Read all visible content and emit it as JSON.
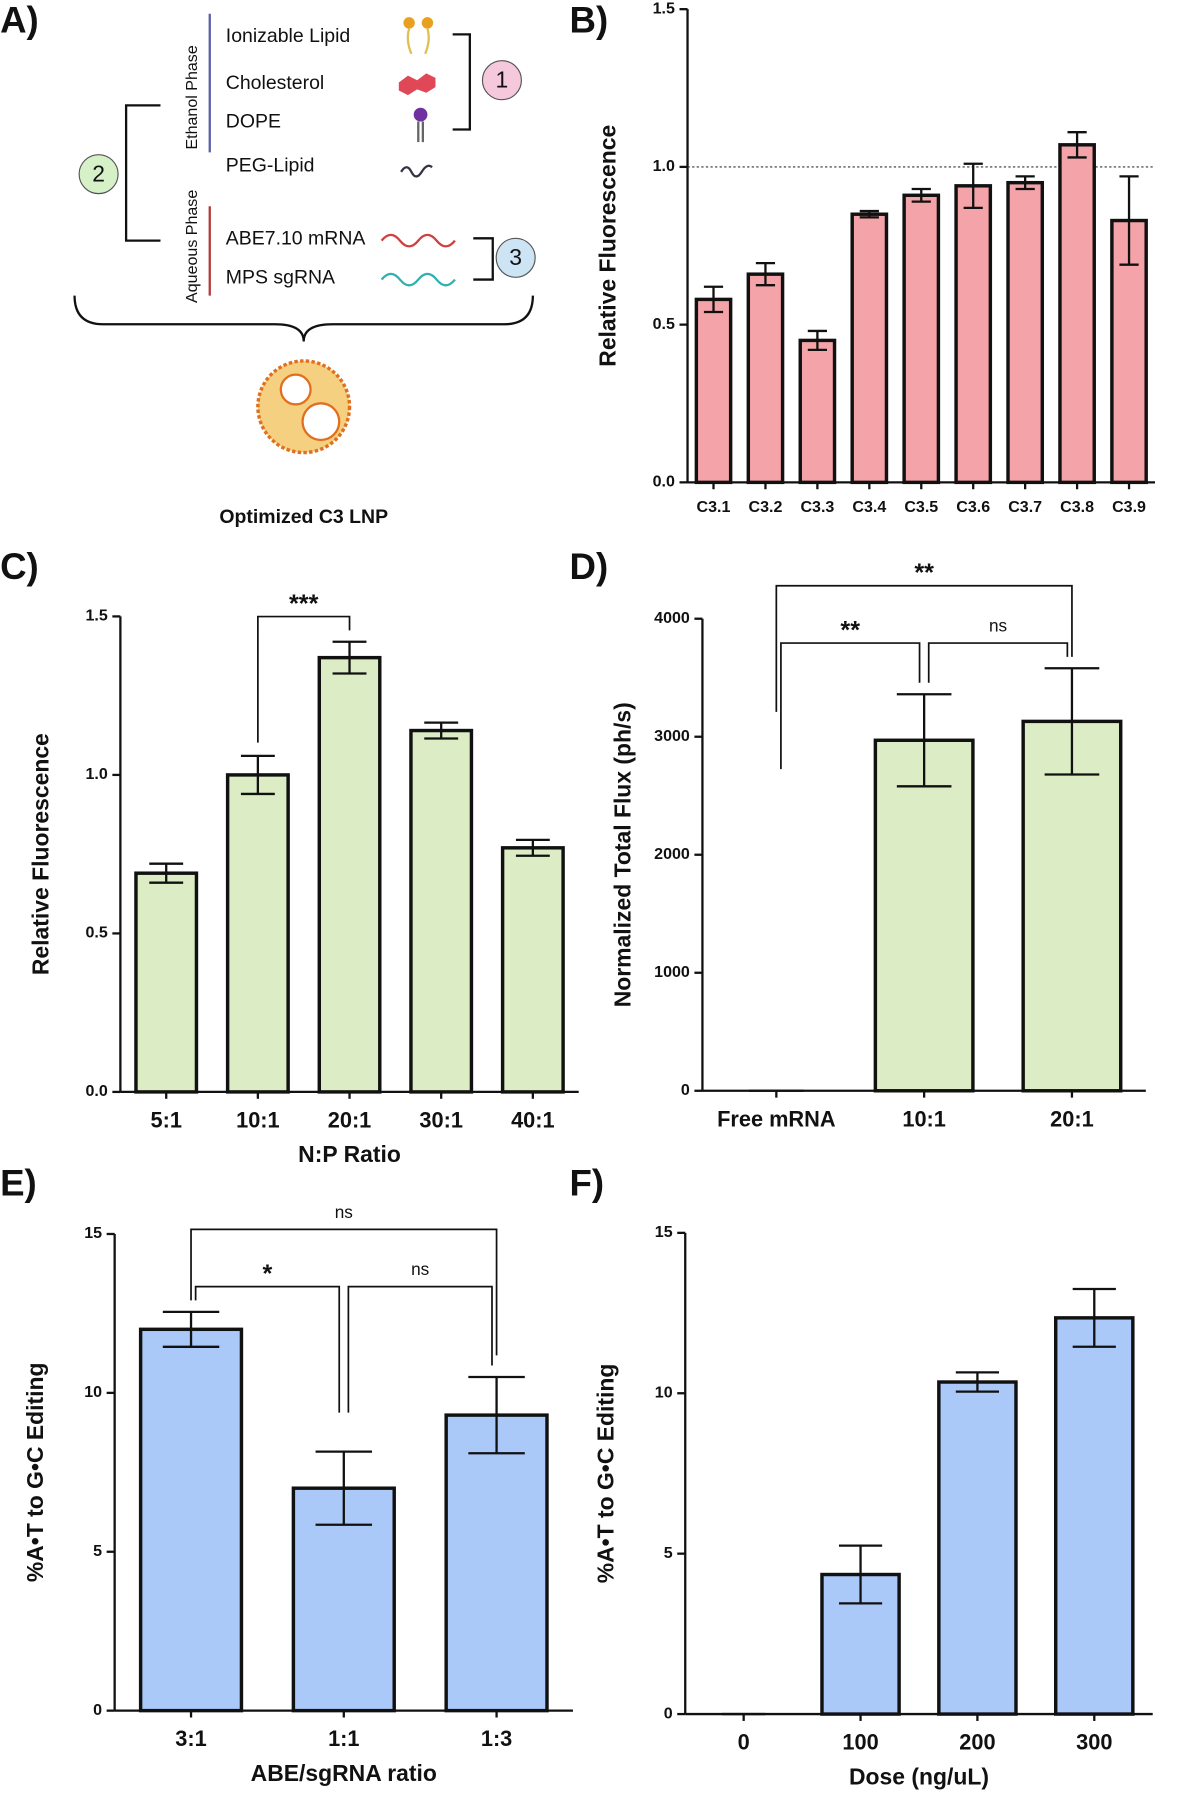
{
  "diagram": {
    "panel_label": "A)",
    "ethanol_phase": "Ethanol Phase",
    "aqueous_phase": "Aqueous Phase",
    "components": [
      "Ionizable Lipid",
      "Cholesterol",
      "DOPE",
      "PEG-Lipid",
      "ABE7.10 mRNA",
      "MPS sgRNA"
    ],
    "groups": [
      "1",
      "2",
      "3"
    ],
    "result": "Optimized C3 LNP"
  },
  "chart_data": [
    {
      "type": "bar",
      "panel_label": "B)",
      "y_label": "Relative Fluorescence",
      "color": "#f4a3a8",
      "categories": [
        "C3.1",
        "C3.2",
        "C3.3",
        "C3.4",
        "C3.5",
        "C3.6",
        "C3.7",
        "C3.8",
        "C3.9"
      ],
      "values": [
        0.58,
        0.66,
        0.45,
        0.85,
        0.91,
        0.94,
        0.95,
        1.07,
        0.83
      ],
      "errors": [
        0.04,
        0.035,
        0.03,
        0.01,
        0.02,
        0.07,
        0.02,
        0.04,
        0.14
      ],
      "ylim": [
        0,
        1.5
      ],
      "yticks": [
        {
          "value": 0,
          "label": "0.0"
        },
        {
          "value": 0.5,
          "label": "0.5"
        },
        {
          "value": 1,
          "label": "1.0"
        },
        {
          "value": 1.5,
          "label": "1.5"
        }
      ],
      "reference_line": 1
    },
    {
      "type": "bar",
      "panel_label": "C)",
      "y_label": "Relative Fluorescence",
      "x_label": "N:P Ratio",
      "color": "#dcecc4",
      "categories": [
        "5:1",
        "10:1",
        "20:1",
        "30:1",
        "40:1"
      ],
      "values": [
        0.69,
        1.0,
        1.37,
        1.14,
        0.77
      ],
      "errors": [
        0.03,
        0.06,
        0.05,
        0.025,
        0.025
      ],
      "ylim": [
        0,
        1.5
      ],
      "yticks": [
        {
          "value": 0,
          "label": "0.0"
        },
        {
          "value": 0.5,
          "label": "0.5"
        },
        {
          "value": 1,
          "label": "1.0"
        },
        {
          "value": 1.5,
          "label": "1.5"
        }
      ],
      "comparisons": [
        {
          "label": "***",
          "between": [
            "10:1",
            "20:1"
          ]
        }
      ]
    },
    {
      "type": "bar",
      "panel_label": "D)",
      "y_label": "Normalized Total Flux (ph/s)",
      "color": "#dcecc4",
      "categories": [
        "Free mRNA",
        "10:1",
        "20:1"
      ],
      "values": [
        0,
        2970,
        3130
      ],
      "errors": [
        0,
        390,
        450
      ],
      "ylim": [
        0,
        4000
      ],
      "yticks": [
        0,
        1000,
        2000,
        3000,
        4000
      ],
      "comparisons": [
        {
          "label": "**",
          "between": [
            "Free mRNA",
            "20:1"
          ]
        },
        {
          "label": "**",
          "between": [
            "Free mRNA",
            "10:1"
          ]
        },
        {
          "label": "ns",
          "between": [
            "10:1",
            "20:1"
          ]
        }
      ]
    },
    {
      "type": "bar",
      "panel_label": "E)",
      "y_label": "%A•T to G•C Editing",
      "x_label": "ABE/sgRNA ratio",
      "color": "#aac8f8",
      "categories": [
        "3:1",
        "1:1",
        "1:3"
      ],
      "values": [
        12.0,
        7.0,
        9.3
      ],
      "errors": [
        0.55,
        1.15,
        1.2
      ],
      "ylim": [
        0,
        15
      ],
      "yticks": [
        0,
        5,
        10,
        15
      ],
      "comparisons": [
        {
          "label": "ns",
          "between": [
            "3:1",
            "1:3"
          ]
        },
        {
          "label": "*",
          "between": [
            "3:1",
            "1:1"
          ]
        },
        {
          "label": "ns",
          "between": [
            "1:1",
            "1:3"
          ]
        }
      ]
    },
    {
      "type": "bar",
      "panel_label": "F)",
      "y_label": "%A•T to G•C Editing",
      "x_label": "Dose (ng/uL)",
      "color": "#aac8f8",
      "categories": [
        "0",
        "100",
        "200",
        "300"
      ],
      "values": [
        0,
        4.35,
        10.35,
        12.35
      ],
      "errors": [
        0,
        0.9,
        0.3,
        0.9
      ],
      "ylim": [
        0,
        15
      ],
      "yticks": [
        0,
        5,
        10,
        15
      ]
    }
  ]
}
